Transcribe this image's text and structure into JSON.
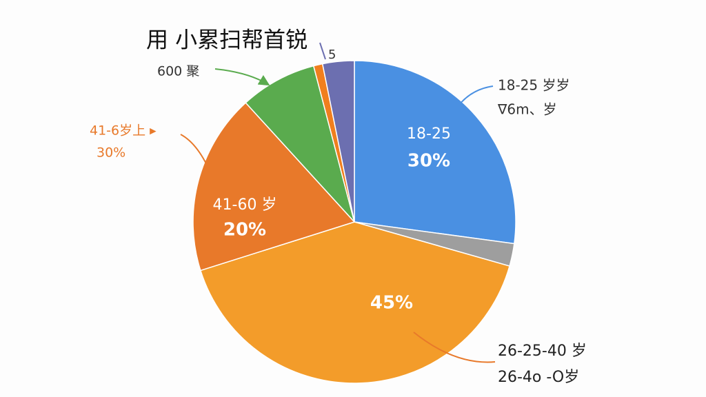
{
  "chart_data": {
    "type": "pie",
    "title": "用 小累扫帮首锐",
    "categories": [
      "18-25",
      null,
      null,
      "41-60 岁",
      null,
      null,
      null
    ],
    "values": [
      30,
      2.5,
      45,
      20,
      8.5,
      1,
      3.5
    ],
    "value_labels": [
      "30%",
      null,
      "45%",
      "20%",
      null,
      null,
      null
    ],
    "colors": [
      "#4a90e2",
      "#9e9e9e",
      "#f39c2a",
      "#e8792a",
      "#5aab4e",
      "#f07f1e",
      "#6c6fb0"
    ],
    "annotations": [
      {
        "lines": [
          "18-25 岁岁",
          "∇6m、岁"
        ],
        "color": "#4a90e2"
      },
      {
        "lines": [
          "26-25-40 岁",
          "26-4o -O岁"
        ],
        "color": "#e8792a"
      },
      {
        "lines": [
          "41-6岁上 ▸",
          "30%"
        ],
        "color": "#e8792a"
      },
      {
        "lines": [
          "600 聚"
        ],
        "color": "#5aab4e"
      },
      {
        "lines": [
          "5"
        ],
        "color": "#6c6fb0"
      }
    ]
  }
}
